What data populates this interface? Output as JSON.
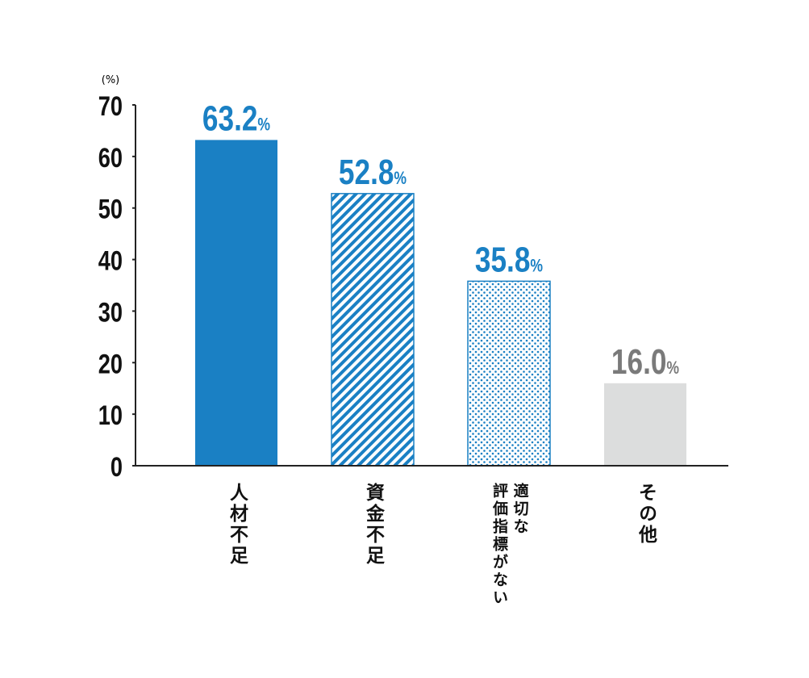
{
  "chart_data": {
    "type": "bar",
    "y_unit_label": "(%)",
    "categories": [
      "人材不足",
      "資金不足",
      "適切な\n評価指標がない",
      "その他"
    ],
    "values": [
      63.2,
      52.8,
      35.8,
      16.0
    ],
    "value_labels": [
      "63.2%",
      "52.8%",
      "35.8%",
      "16.0%"
    ],
    "colors": [
      "#1a80c4",
      "#1a80c4",
      "#1a80c4",
      "#dcdddd"
    ],
    "fills": [
      "solid",
      "hatch",
      "dots",
      "solid"
    ],
    "label_colors": [
      "#1a80c4",
      "#1a80c4",
      "#1a80c4",
      "#7a7a7a"
    ],
    "ylim": [
      0,
      70
    ],
    "yticks": [
      0,
      10,
      20,
      30,
      40,
      50,
      60,
      70
    ]
  }
}
